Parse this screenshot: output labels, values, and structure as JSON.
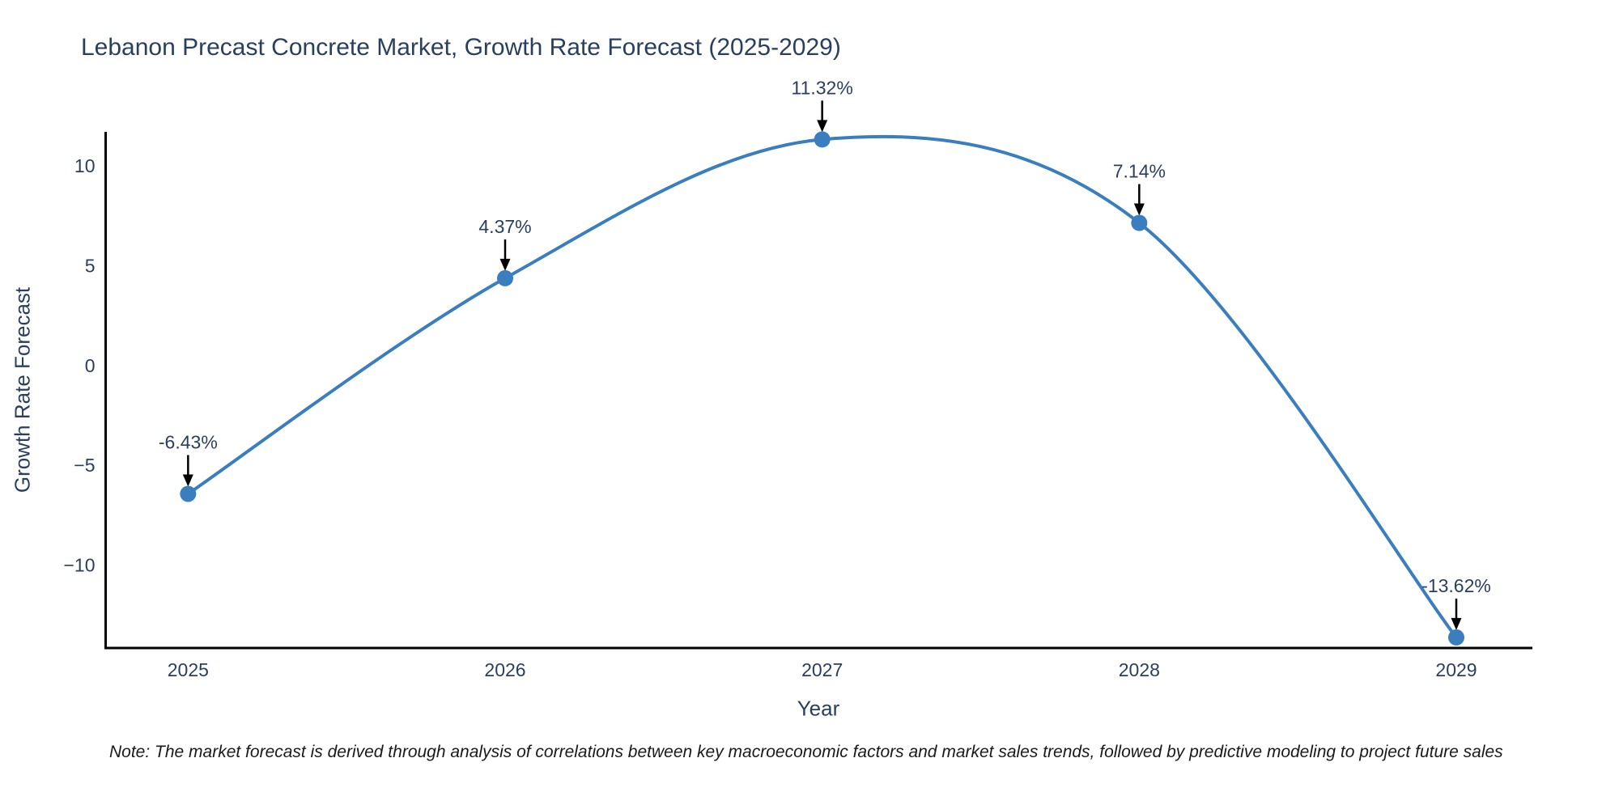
{
  "page": {
    "note": "Note: The market forecast is derived through analysis of correlations between key macroeconomic factors and market sales trends, followed by predictive modeling to project future sales"
  },
  "chart_data": {
    "type": "line",
    "line_shape": "spline",
    "title": "Lebanon Precast Concrete Market, Growth Rate Forecast (2025-2029)",
    "xlabel": "Year",
    "ylabel": "Growth Rate Forecast",
    "x": [
      2025,
      2026,
      2027,
      2028,
      2029
    ],
    "series": [
      {
        "name": "Growth Rate Forecast",
        "values": [
          -6.43,
          4.37,
          11.32,
          7.14,
          -13.62
        ]
      }
    ],
    "point_labels": [
      "-6.43%",
      "4.37%",
      "11.32%",
      "7.14%",
      "-13.62%"
    ],
    "xticks": [
      "2025",
      "2026",
      "2027",
      "2028",
      "2029"
    ],
    "yticks": [
      10,
      5,
      0,
      -5,
      -10
    ],
    "xlim": [
      2024.74,
      2029.24
    ],
    "ylim": [
      -14.15,
      11.7
    ],
    "grid": false,
    "legend": "none",
    "annotations_have_arrows": true,
    "colors": {
      "line": "#3a7ebf",
      "marker": "#3a7ebf",
      "text": "#2a3f5f",
      "axis": "#000000",
      "arrow": "#000000",
      "background": "#ffffff"
    }
  }
}
